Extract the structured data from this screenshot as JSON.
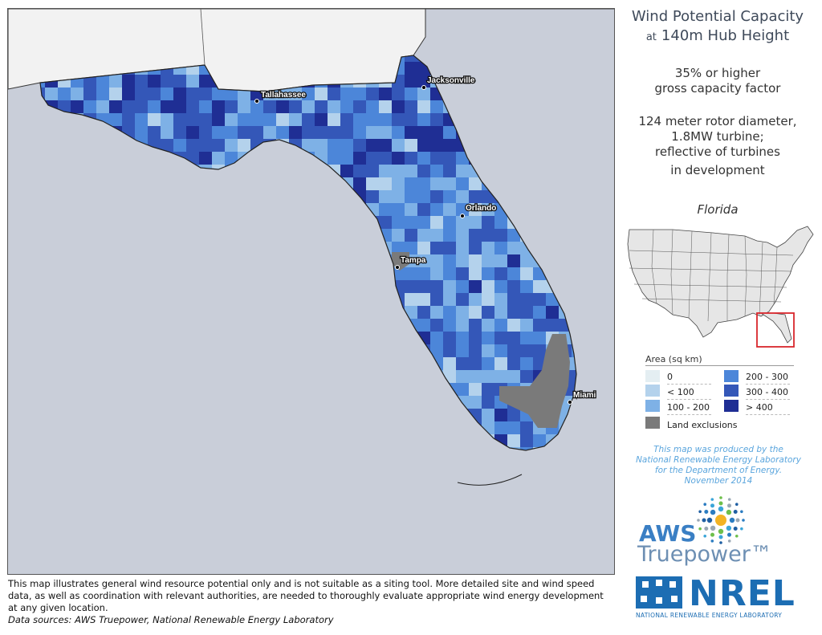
{
  "title": {
    "line1": "Wind Potential Capacity",
    "at": "at",
    "line2": "140m Hub Height"
  },
  "descriptions": {
    "capacity_factor": [
      "35% or higher",
      "gross capacity factor"
    ],
    "turbine": [
      "124 meter rotor diameter,",
      "1.8MW turbine;",
      "reflective of turbines",
      "in development"
    ]
  },
  "state_name": "Florida",
  "cities": {
    "tallahassee": "Tallahassee",
    "jacksonville": "Jacksonville",
    "orlando": "Orlando",
    "tampa": "Tampa",
    "miami": "Miami"
  },
  "legend": {
    "title": "Area (sq km)",
    "items": [
      {
        "label": "0",
        "color": "#e4eef2"
      },
      {
        "label": "< 100",
        "color": "#b4d2ec"
      },
      {
        "label": "100 - 200",
        "color": "#7eb1e6"
      },
      {
        "label": "200 - 300",
        "color": "#4c86d9"
      },
      {
        "label": "300 - 400",
        "color": "#3457b8"
      },
      {
        "label": "> 400",
        "color": "#1f2e94"
      },
      {
        "label": "Land exclusions",
        "color": "#7a7a7a"
      }
    ]
  },
  "credit": [
    "This map was produced by the",
    "National Renewable Energy Laboratory",
    "for the Department of Energy.",
    "November 2014"
  ],
  "logos": {
    "aws": "AWS",
    "truepower": "Truepower™",
    "nrel": "NREL",
    "nrel_sub": "NATIONAL RENEWABLE ENERGY LABORATORY"
  },
  "disclaimer": "This map illustrates general wind resource potential only and is not suitable as a siting tool. More detailed site and wind speed data, as well as coordination with relevant authorities, are needed to thoroughly evaluate appropriate wind energy development at any given location.",
  "data_sources": "Data sources: AWS Truepower, National Renewable Energy Laboratory",
  "colors": {
    "water": "#c9ced9",
    "land_outside": "#f2f2f2",
    "inset_box": "#d9262c"
  }
}
